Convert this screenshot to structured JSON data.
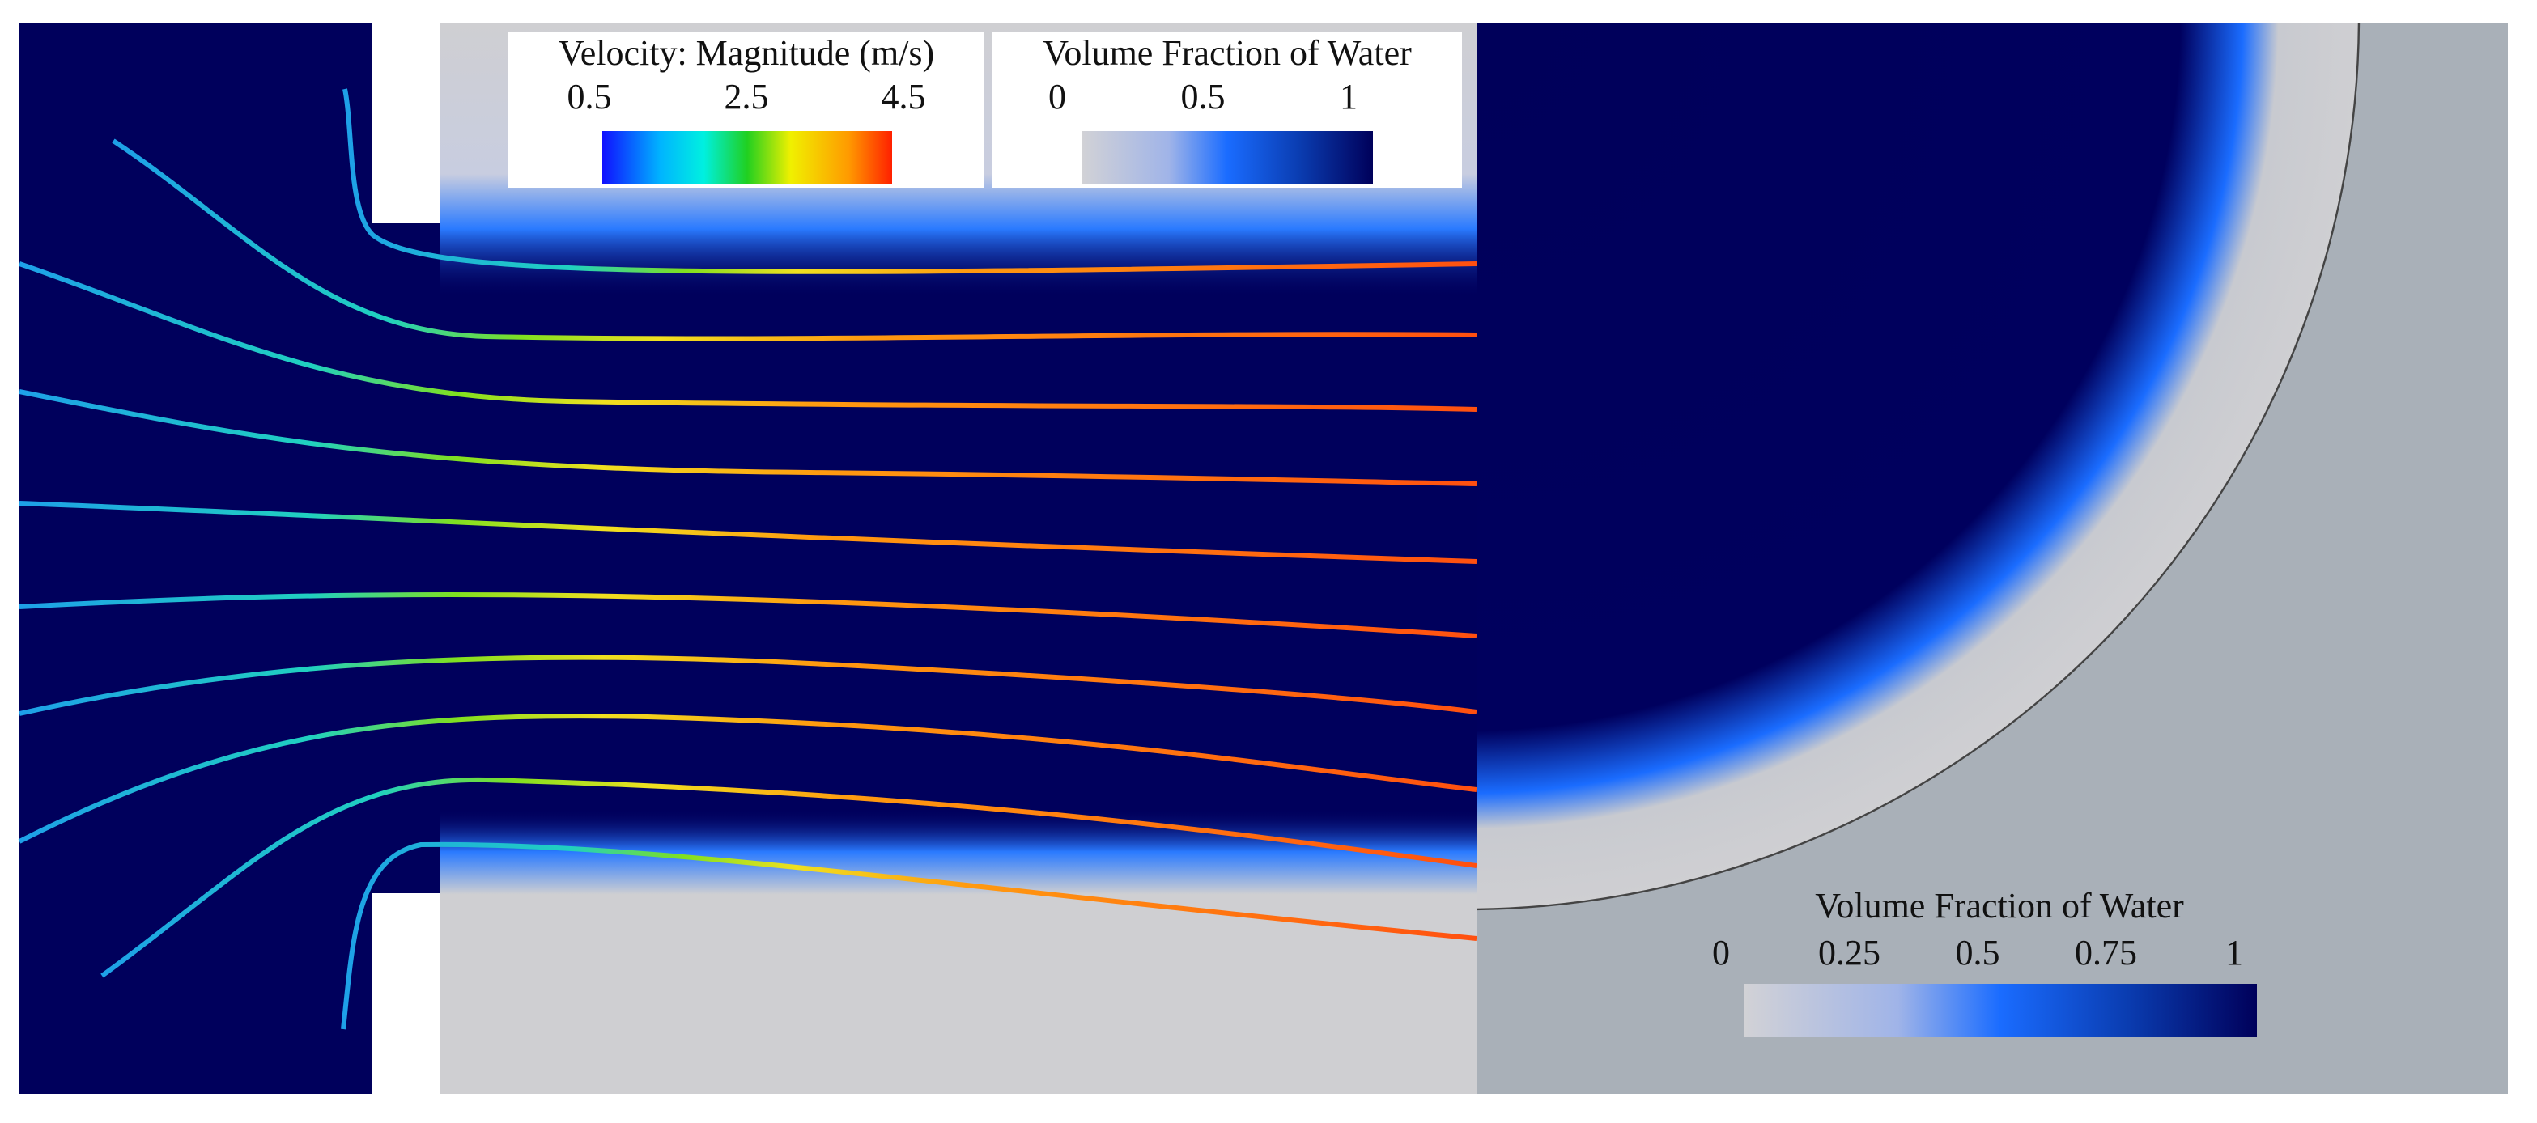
{
  "legends": [
    {
      "title": "Velocity: Magnitude (m/s)",
      "ticks": [
        0.5,
        2.5,
        4.5
      ]
    },
    {
      "title": "Volume Fraction of Water",
      "ticks": [
        0,
        0.5,
        1
      ]
    },
    {
      "title": "Volume Fraction of Water",
      "ticks": [
        0,
        0.25,
        0.5,
        0.75,
        1
      ]
    }
  ]
}
